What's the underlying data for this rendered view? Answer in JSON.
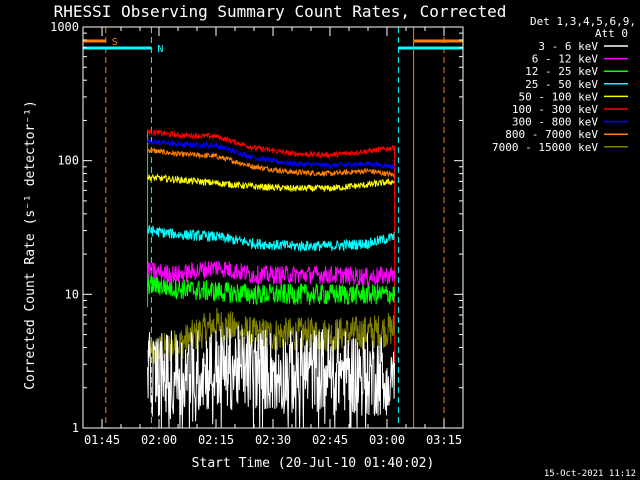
{
  "chart_data": {
    "type": "line",
    "title": "RHESSI Observing Summary Count Rates, Corrected",
    "xlabel": "Start Time (20-Jul-10 01:40:02)",
    "ylabel": "Corrected Count Rate (s⁻¹ detector⁻¹)",
    "y_scale": "log",
    "ylim": [
      1,
      1000
    ],
    "yticks": [
      "1",
      "10",
      "100",
      "1000"
    ],
    "xlim_minutes_after_0140": [
      0,
      100
    ],
    "xticks": [
      "01:45",
      "02:00",
      "02:15",
      "02:30",
      "02:45",
      "03:00",
      "03:15"
    ],
    "legend_header": [
      "Det 1,3,4,5,6,9,",
      "Att 0"
    ],
    "legend_position": "right",
    "footer_date": "15-Oct-2021 11:12",
    "markers": [
      {
        "label": "S",
        "color": "#ff7f00"
      },
      {
        "label": "N",
        "color": "#00ffff"
      }
    ],
    "series": [
      {
        "name": "3 - 6 keV",
        "color": "#ffffff"
      },
      {
        "name": "6 - 12 keV",
        "color": "#ff00ff"
      },
      {
        "name": "12 - 25 keV",
        "color": "#00ff00"
      },
      {
        "name": "25 - 50 keV",
        "color": "#00ffff"
      },
      {
        "name": "50 - 100 keV",
        "color": "#ffff00"
      },
      {
        "name": "100 - 300 keV",
        "color": "#ff0000"
      },
      {
        "name": "300 - 800 keV",
        "color": "#0000ff"
      },
      {
        "name": "800 - 7000 keV",
        "color": "#ff7f00"
      },
      {
        "name": "7000 - 15000 keV",
        "color": "#808000"
      }
    ],
    "series_values": {
      "x": [
        "01:57",
        "02:05",
        "02:15",
        "02:25",
        "02:35",
        "02:45",
        "02:55",
        "03:02"
      ],
      "3 - 6 keV": [
        2.5,
        2.6,
        2.8,
        2.8,
        2.6,
        2.8,
        2.5,
        2.6
      ],
      "6 - 12 keV": [
        15,
        14,
        16,
        14,
        14,
        14,
        13.5,
        14
      ],
      "12 - 25 keV": [
        12,
        11,
        10.5,
        10,
        10,
        10,
        10,
        10
      ],
      "25 - 50 keV": [
        30,
        28,
        27,
        24,
        23,
        23,
        24,
        27
      ],
      "50 - 100 keV": [
        75,
        72,
        68,
        64,
        62,
        62,
        66,
        70
      ],
      "100 - 300 keV": [
        165,
        155,
        152,
        125,
        113,
        110,
        118,
        125
      ],
      "300 - 800 keV": [
        140,
        132,
        130,
        105,
        95,
        92,
        95,
        90
      ],
      "800 - 7000 keV": [
        120,
        112,
        108,
        90,
        82,
        80,
        84,
        78
      ],
      "7000 - 15000 keV": [
        3.5,
        4.2,
        6.0,
        5.0,
        5.0,
        5.0,
        5.2,
        5.5
      ]
    }
  }
}
